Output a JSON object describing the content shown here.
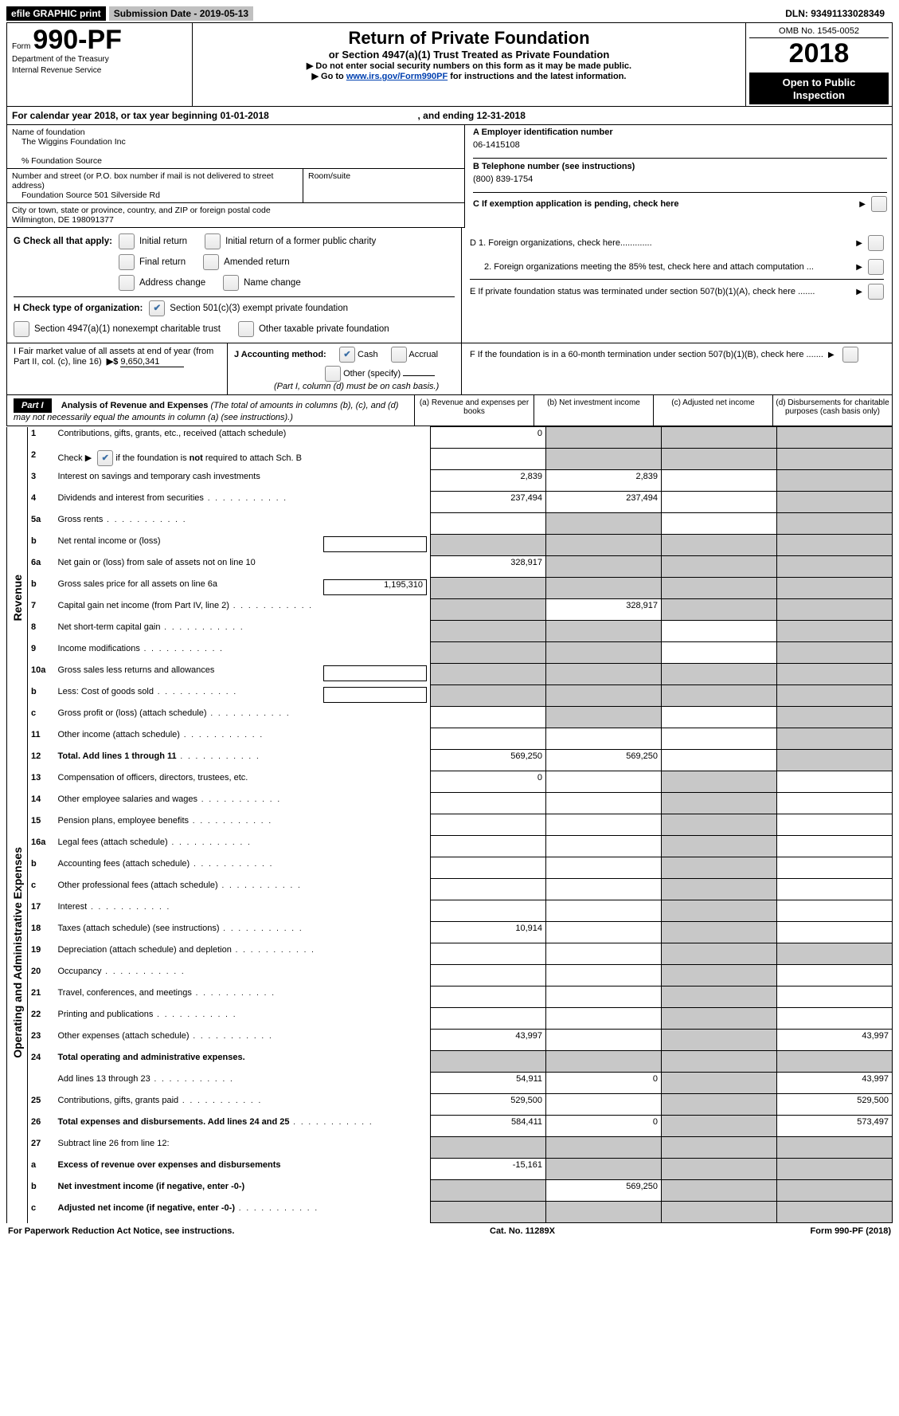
{
  "top": {
    "efile": "efile GRAPHIC print",
    "submission_label": "Submission Date - 2019-05-13",
    "dln": "DLN: 93491133028349"
  },
  "header": {
    "form_prefix": "Form",
    "form_number": "990-PF",
    "dept1": "Department of the Treasury",
    "dept2": "Internal Revenue Service",
    "title": "Return of Private Foundation",
    "subtitle": "or Section 4947(a)(1) Trust Treated as Private Foundation",
    "bullet1": "▶  Do not enter social security numbers on this form as it may be made public.",
    "bullet2_a": "▶ Go to ",
    "bullet2_link": "www.irs.gov/Form990PF",
    "bullet2_b": " for instructions and the latest information.",
    "omb": "OMB No. 1545-0052",
    "year": "2018",
    "open1": "Open to Public",
    "open2": "Inspection"
  },
  "cal": {
    "line": "For calendar year 2018, or tax year beginning 01-01-2018",
    "mid": ", and ending 12-31-2018"
  },
  "ident": {
    "name_label": "Name of foundation",
    "name": "The Wiggins Foundation Inc",
    "care_of": "% Foundation Source",
    "addr_label": "Number and street (or P.O. box number if mail is not delivered to street address)",
    "addr": "Foundation Source 501 Silverside Rd",
    "room_label": "Room/suite",
    "city_label": "City or town, state or province, country, and ZIP or foreign postal code",
    "city": "Wilmington, DE   198091377",
    "A_label": "A Employer identification number",
    "A_val": "06-1415108",
    "B_label": "B  Telephone number (see instructions)",
    "B_val": "(800) 839-1754",
    "C_label": "C  If exemption application is pending, check here"
  },
  "G": {
    "label": "G Check all that apply:",
    "opts": [
      "Initial return",
      "Initial return of a former public charity",
      "Final return",
      "Amended return",
      "Address change",
      "Name change"
    ]
  },
  "H": {
    "label": "H Check type of organization:",
    "o1": "Section 501(c)(3) exempt private foundation",
    "o2": "Section 4947(a)(1) nonexempt charitable trust",
    "o3": "Other taxable private foundation"
  },
  "D": {
    "d1": "D 1. Foreign organizations, check here.............",
    "d2": "2. Foreign organizations meeting the 85% test, check here and attach computation ..."
  },
  "E": "E   If private foundation status was terminated under section 507(b)(1)(A), check here .......",
  "I": {
    "label": "I Fair market value of all assets at end of year (from Part II, col. (c), line 16)",
    "arrow": "▶$",
    "value": "9,650,341"
  },
  "J": {
    "label": "J Accounting method:",
    "cash": "Cash",
    "accrual": "Accrual",
    "other": "Other (specify)",
    "note": "(Part I, column (d) must be on cash basis.)"
  },
  "F": "F   If the foundation is in a 60-month termination under section 507(b)(1)(B), check here .......",
  "part1": {
    "tag": "Part I",
    "title": "Analysis of Revenue and Expenses",
    "note": "(The total of amounts in columns (b), (c), and (d) may not necessarily equal the amounts in column (a) (see instructions).)",
    "ca": "(a)      Revenue and expenses per books",
    "cb": "(b)      Net investment income",
    "cc": "(c)      Adjusted net income",
    "cd": "(d)      Disbursements for charitable purposes (cash basis only)"
  },
  "vlab_rev": "Revenue",
  "vlab_exp": "Operating and Administrative Expenses",
  "rows": {
    "r1": {
      "n": "1",
      "d": "Contributions, gifts, grants, etc., received (attach schedule)",
      "a": "0"
    },
    "r2": {
      "n": "2",
      "d": "Check ▶        if the foundation is not required to attach Sch. B"
    },
    "r3": {
      "n": "3",
      "d": "Interest on savings and temporary cash investments",
      "a": "2,839",
      "b": "2,839"
    },
    "r4": {
      "n": "4",
      "d": "Dividends and interest from securities",
      "a": "237,494",
      "b": "237,494"
    },
    "r5a": {
      "n": "5a",
      "d": "Gross rents"
    },
    "r5b": {
      "n": "b",
      "d": "Net rental income or (loss)"
    },
    "r6a": {
      "n": "6a",
      "d": "Net gain or (loss) from sale of assets not on line 10",
      "a": "328,917"
    },
    "r6b": {
      "n": "b",
      "d": "Gross sales price for all assets on line 6a",
      "mini": "1,195,310"
    },
    "r7": {
      "n": "7",
      "d": "Capital gain net income (from Part IV, line 2)",
      "b": "328,917"
    },
    "r8": {
      "n": "8",
      "d": "Net short-term capital gain"
    },
    "r9": {
      "n": "9",
      "d": "Income modifications"
    },
    "r10a": {
      "n": "10a",
      "d": "Gross sales less returns and allowances"
    },
    "r10b": {
      "n": "b",
      "d": "Less: Cost of goods sold"
    },
    "r10c": {
      "n": "c",
      "d": "Gross profit or (loss) (attach schedule)"
    },
    "r11": {
      "n": "11",
      "d": "Other income (attach schedule)"
    },
    "r12": {
      "n": "12",
      "d": "Total. Add lines 1 through 11",
      "a": "569,250",
      "b": "569,250",
      "bold": true
    },
    "r13": {
      "n": "13",
      "d": "Compensation of officers, directors, trustees, etc.",
      "a": "0"
    },
    "r14": {
      "n": "14",
      "d": "Other employee salaries and wages"
    },
    "r15": {
      "n": "15",
      "d": "Pension plans, employee benefits"
    },
    "r16a": {
      "n": "16a",
      "d": "Legal fees (attach schedule)"
    },
    "r16b": {
      "n": "b",
      "d": "Accounting fees (attach schedule)"
    },
    "r16c": {
      "n": "c",
      "d": "Other professional fees (attach schedule)"
    },
    "r17": {
      "n": "17",
      "d": "Interest"
    },
    "r18": {
      "n": "18",
      "d": "Taxes (attach schedule) (see instructions)",
      "a": "10,914"
    },
    "r19": {
      "n": "19",
      "d": "Depreciation (attach schedule) and depletion"
    },
    "r20": {
      "n": "20",
      "d": "Occupancy"
    },
    "r21": {
      "n": "21",
      "d": "Travel, conferences, and meetings"
    },
    "r22": {
      "n": "22",
      "d": "Printing and publications"
    },
    "r23": {
      "n": "23",
      "d": "Other expenses (attach schedule)",
      "a": "43,997",
      "d_": "43,997"
    },
    "r24": {
      "n": "24",
      "d": "Total operating and administrative expenses.",
      "bold": true
    },
    "r24b": {
      "n": "",
      "d": "Add lines 13 through 23",
      "a": "54,911",
      "b": "0",
      "d_": "43,997"
    },
    "r25": {
      "n": "25",
      "d": "Contributions, gifts, grants paid",
      "a": "529,500",
      "d_": "529,500"
    },
    "r26": {
      "n": "26",
      "d": "Total expenses and disbursements. Add lines 24 and 25",
      "a": "584,411",
      "b": "0",
      "d_": "573,497",
      "bold": true
    },
    "r27": {
      "n": "27",
      "d": "Subtract line 26 from line 12:"
    },
    "r27a": {
      "n": "a",
      "d": "Excess of revenue over expenses and disbursements",
      "a": "-15,161",
      "bold": true
    },
    "r27b": {
      "n": "b",
      "d": "Net investment income (if negative, enter -0-)",
      "b": "569,250",
      "bold": true
    },
    "r27c": {
      "n": "c",
      "d": "Adjusted net income (if negative, enter -0-)",
      "bold": true
    }
  },
  "footer": {
    "left": "For Paperwork Reduction Act Notice, see instructions.",
    "mid": "Cat. No. 11289X",
    "right": "Form 990-PF (2018)"
  }
}
